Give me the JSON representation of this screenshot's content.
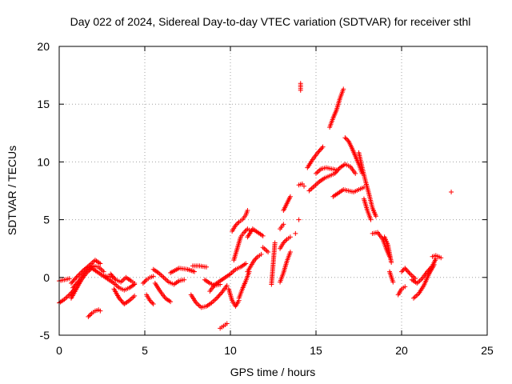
{
  "chart_data": {
    "type": "scatter",
    "title": "Day 022 of 2024, Sidereal Day-to-day VTEC variation (SDTVAR) for receiver sthl",
    "xlabel": "GPS time / hours",
    "ylabel": "SDTVAR / TECUs",
    "xlim": [
      0,
      25
    ],
    "ylim": [
      -5,
      20
    ],
    "xticks": [
      0,
      5,
      10,
      15,
      20,
      25
    ],
    "yticks": [
      -5,
      0,
      5,
      10,
      15,
      20
    ],
    "grid": true,
    "marker": "+",
    "series_color": "#ff0000",
    "segments": [
      {
        "name": "track-01",
        "x": [
          0.0,
          0.3,
          0.6,
          0.9
        ],
        "y": [
          -2.2,
          -1.9,
          -1.5,
          -1.0
        ]
      },
      {
        "name": "track-02",
        "x": [
          0.0,
          0.3,
          0.6
        ],
        "y": [
          -0.3,
          -0.2,
          -0.1
        ]
      },
      {
        "name": "track-03",
        "x": [
          0.7,
          1.0,
          1.3,
          1.6,
          1.9,
          2.2,
          2.5,
          2.8,
          3.1
        ],
        "y": [
          -1.8,
          -1.0,
          -0.2,
          0.4,
          0.8,
          0.5,
          0.2,
          0.1,
          0.0
        ]
      },
      {
        "name": "track-04",
        "x": [
          0.7,
          1.0,
          1.4,
          1.8,
          2.1,
          2.4
        ],
        "y": [
          -0.5,
          0.0,
          0.6,
          1.1,
          1.5,
          1.2
        ]
      },
      {
        "name": "track-05",
        "x": [
          0.8,
          1.2,
          1.6,
          2.0,
          2.3,
          2.6
        ],
        "y": [
          -0.9,
          -0.2,
          0.6,
          1.0,
          0.9,
          0.5
        ]
      },
      {
        "name": "track-06",
        "x": [
          1.7,
          1.9,
          2.1,
          2.3,
          2.4
        ],
        "y": [
          -3.4,
          -3.1,
          -2.9,
          -2.8,
          -2.9
        ]
      },
      {
        "name": "track-07",
        "x": [
          2.6,
          2.9,
          3.2,
          3.5,
          3.8,
          4.1,
          4.4
        ],
        "y": [
          0.1,
          -0.2,
          -0.5,
          -0.9,
          -1.1,
          -0.9,
          -0.6
        ]
      },
      {
        "name": "track-08",
        "x": [
          3.0,
          3.3,
          3.6,
          3.9,
          4.2,
          4.4
        ],
        "y": [
          0.3,
          -0.2,
          -0.4,
          0.0,
          -0.3,
          -0.5
        ]
      },
      {
        "name": "track-09",
        "x": [
          3.2,
          3.5,
          3.8,
          4.1,
          4.4
        ],
        "y": [
          -1.0,
          -1.8,
          -2.3,
          -2.0,
          -1.6
        ]
      },
      {
        "name": "track-10",
        "x": [
          4.9,
          5.1,
          5.3,
          5.5
        ],
        "y": [
          -0.5,
          -0.2,
          0.0,
          0.1
        ]
      },
      {
        "name": "track-11",
        "x": [
          5.1,
          5.3,
          5.5
        ],
        "y": [
          -1.5,
          -2.0,
          -2.3
        ]
      },
      {
        "name": "track-12",
        "x": [
          5.5,
          5.8,
          6.1,
          6.4,
          6.7,
          7.0,
          7.3
        ],
        "y": [
          0.7,
          0.4,
          0.0,
          -0.4,
          -0.6,
          -0.3,
          -0.2
        ]
      },
      {
        "name": "track-13",
        "x": [
          5.6,
          5.9,
          6.2,
          6.5
        ],
        "y": [
          -0.5,
          -1.2,
          -1.8,
          -2.1
        ]
      },
      {
        "name": "track-14",
        "x": [
          6.5,
          7.0,
          7.5,
          7.9
        ],
        "y": [
          0.4,
          0.8,
          0.7,
          0.5
        ]
      },
      {
        "name": "track-15",
        "x": [
          7.8,
          8.2,
          8.6
        ],
        "y": [
          1.0,
          1.0,
          0.9
        ]
      },
      {
        "name": "track-16",
        "x": [
          7.7,
          8.0,
          8.3,
          8.6,
          8.9,
          9.2,
          9.5,
          9.8
        ],
        "y": [
          -1.5,
          -2.2,
          -2.6,
          -2.5,
          -2.2,
          -1.8,
          -1.3,
          -0.7
        ]
      },
      {
        "name": "track-17",
        "x": [
          8.5,
          8.8,
          9.1,
          9.4
        ],
        "y": [
          -0.2,
          -0.5,
          -0.7,
          -0.6
        ]
      },
      {
        "name": "track-18",
        "x": [
          8.8,
          9.1,
          9.4,
          9.7,
          10.0,
          10.3,
          10.6,
          10.9
        ],
        "y": [
          -1.2,
          -0.6,
          -0.3,
          0.0,
          0.3,
          0.7,
          0.9,
          1.2
        ]
      },
      {
        "name": "track-19",
        "x": [
          9.4,
          9.6,
          9.8
        ],
        "y": [
          -4.4,
          -4.2,
          -4.0
        ]
      },
      {
        "name": "track-20",
        "x": [
          9.9,
          10.1,
          10.3,
          10.5
        ],
        "y": [
          -1.0,
          -2.0,
          -2.5,
          -2.0
        ]
      },
      {
        "name": "track-21",
        "x": [
          10.1,
          10.3,
          10.5,
          10.7,
          10.9,
          11.0
        ],
        "y": [
          4.0,
          4.5,
          4.8,
          5.0,
          5.4,
          5.8
        ]
      },
      {
        "name": "track-22",
        "x": [
          10.2,
          10.4,
          10.6,
          10.8,
          11.0,
          11.2
        ],
        "y": [
          1.5,
          2.5,
          3.5,
          3.9,
          4.2,
          4.0
        ]
      },
      {
        "name": "track-23",
        "x": [
          10.5,
          10.7,
          10.9,
          11.1
        ],
        "y": [
          -1.8,
          -1.0,
          -0.3,
          0.5
        ]
      },
      {
        "name": "track-24",
        "x": [
          11.0,
          11.3,
          11.6,
          11.9
        ],
        "y": [
          3.5,
          4.2,
          3.9,
          3.6
        ]
      },
      {
        "name": "track-25",
        "x": [
          11.0,
          11.2,
          11.4,
          11.6,
          11.8
        ],
        "y": [
          0.5,
          1.0,
          1.5,
          1.8,
          2.0
        ]
      },
      {
        "name": "track-26",
        "x": [
          11.9,
          12.2
        ],
        "y": [
          2.6,
          2.2
        ]
      },
      {
        "name": "track-27",
        "x": [
          12.4,
          12.6
        ],
        "y": [
          -0.6,
          3.0
        ]
      },
      {
        "name": "track-28",
        "x": [
          12.9,
          13.1,
          13.3,
          13.5
        ],
        "y": [
          2.5,
          3.0,
          3.3,
          3.5
        ]
      },
      {
        "name": "track-29",
        "x": [
          12.9,
          13.1,
          13.3,
          13.5
        ],
        "y": [
          -0.4,
          0.4,
          1.4,
          2.2
        ]
      },
      {
        "name": "track-30",
        "x": [
          12.9,
          13.1
        ],
        "y": [
          4.2,
          4.6
        ]
      },
      {
        "name": "track-31",
        "x": [
          13.1,
          13.3,
          13.5
        ],
        "y": [
          5.8,
          6.4,
          7.0
        ]
      },
      {
        "name": "track-32",
        "x": [
          13.8
        ],
        "y": [
          3.8
        ]
      },
      {
        "name": "track-33",
        "x": [
          14.0
        ],
        "y": [
          5.0
        ]
      },
      {
        "name": "track-34",
        "x": [
          14.1,
          14.1,
          14.1
        ],
        "y": [
          16.8,
          16.5,
          16.2
        ]
      },
      {
        "name": "track-35",
        "x": [
          14.0,
          14.2,
          14.3
        ],
        "y": [
          8.0,
          8.1,
          7.9
        ]
      },
      {
        "name": "track-36",
        "x": [
          14.5,
          14.8,
          15.1,
          15.4
        ],
        "y": [
          9.5,
          10.2,
          10.8,
          11.3
        ]
      },
      {
        "name": "track-37",
        "x": [
          14.6,
          14.9,
          15.2,
          15.5,
          15.8,
          16.1,
          16.4,
          16.7,
          17.0,
          17.3
        ],
        "y": [
          7.5,
          7.9,
          8.3,
          8.6,
          8.8,
          9.0,
          9.5,
          9.8,
          9.6,
          9.0
        ]
      },
      {
        "name": "track-38",
        "x": [
          15.0,
          15.3,
          15.6,
          15.9,
          16.2
        ],
        "y": [
          9.0,
          9.4,
          9.5,
          9.4,
          9.3
        ]
      },
      {
        "name": "track-39",
        "x": [
          15.8,
          16.0,
          16.2,
          16.4,
          16.6
        ],
        "y": [
          13.0,
          13.8,
          14.5,
          15.5,
          16.3
        ]
      },
      {
        "name": "track-40",
        "x": [
          16.0,
          16.3,
          16.6,
          16.9,
          17.2,
          17.5,
          17.8
        ],
        "y": [
          7.0,
          7.3,
          7.6,
          7.5,
          7.4,
          7.6,
          7.8
        ]
      },
      {
        "name": "track-41",
        "x": [
          16.7,
          16.9,
          17.1,
          17.3,
          17.5,
          17.7
        ],
        "y": [
          12.1,
          11.8,
          11.2,
          10.5,
          9.8,
          9.0
        ]
      },
      {
        "name": "track-42",
        "x": [
          17.5,
          17.7,
          17.9,
          18.1,
          18.3,
          18.5
        ],
        "y": [
          10.8,
          9.5,
          8.3,
          7.2,
          6.0,
          5.3
        ]
      },
      {
        "name": "track-43",
        "x": [
          17.8,
          18.0,
          18.2
        ],
        "y": [
          6.8,
          5.8,
          5.0
        ]
      },
      {
        "name": "track-44",
        "x": [
          18.3,
          18.6,
          18.9,
          19.1,
          19.3
        ],
        "y": [
          3.8,
          3.9,
          3.3,
          2.5,
          1.8
        ]
      },
      {
        "name": "track-45",
        "x": [
          19.0,
          19.2,
          19.4
        ],
        "y": [
          3.5,
          2.8,
          1.3
        ]
      },
      {
        "name": "track-46",
        "x": [
          19.3,
          19.5
        ],
        "y": [
          0.5,
          -0.4
        ]
      },
      {
        "name": "track-47",
        "x": [
          19.8,
          20.0,
          20.2
        ],
        "y": [
          -1.5,
          -1.0,
          -0.8
        ]
      },
      {
        "name": "track-48",
        "x": [
          20.0,
          20.2,
          20.5,
          20.8
        ],
        "y": [
          0.5,
          0.8,
          0.3,
          -0.1
        ]
      },
      {
        "name": "track-49",
        "x": [
          20.7,
          21.0,
          21.3,
          21.6,
          21.9
        ],
        "y": [
          -1.8,
          -1.4,
          -0.7,
          0.3,
          1.1
        ]
      },
      {
        "name": "track-50",
        "x": [
          20.6,
          20.9,
          21.2,
          21.5,
          21.8,
          22.0
        ],
        "y": [
          -0.2,
          -0.5,
          -0.1,
          0.5,
          1.0,
          1.6
        ]
      },
      {
        "name": "track-51",
        "x": [
          21.8,
          22.0,
          22.3
        ],
        "y": [
          1.8,
          1.9,
          1.7
        ]
      },
      {
        "name": "track-52",
        "x": [
          22.9
        ],
        "y": [
          7.4
        ]
      }
    ]
  }
}
